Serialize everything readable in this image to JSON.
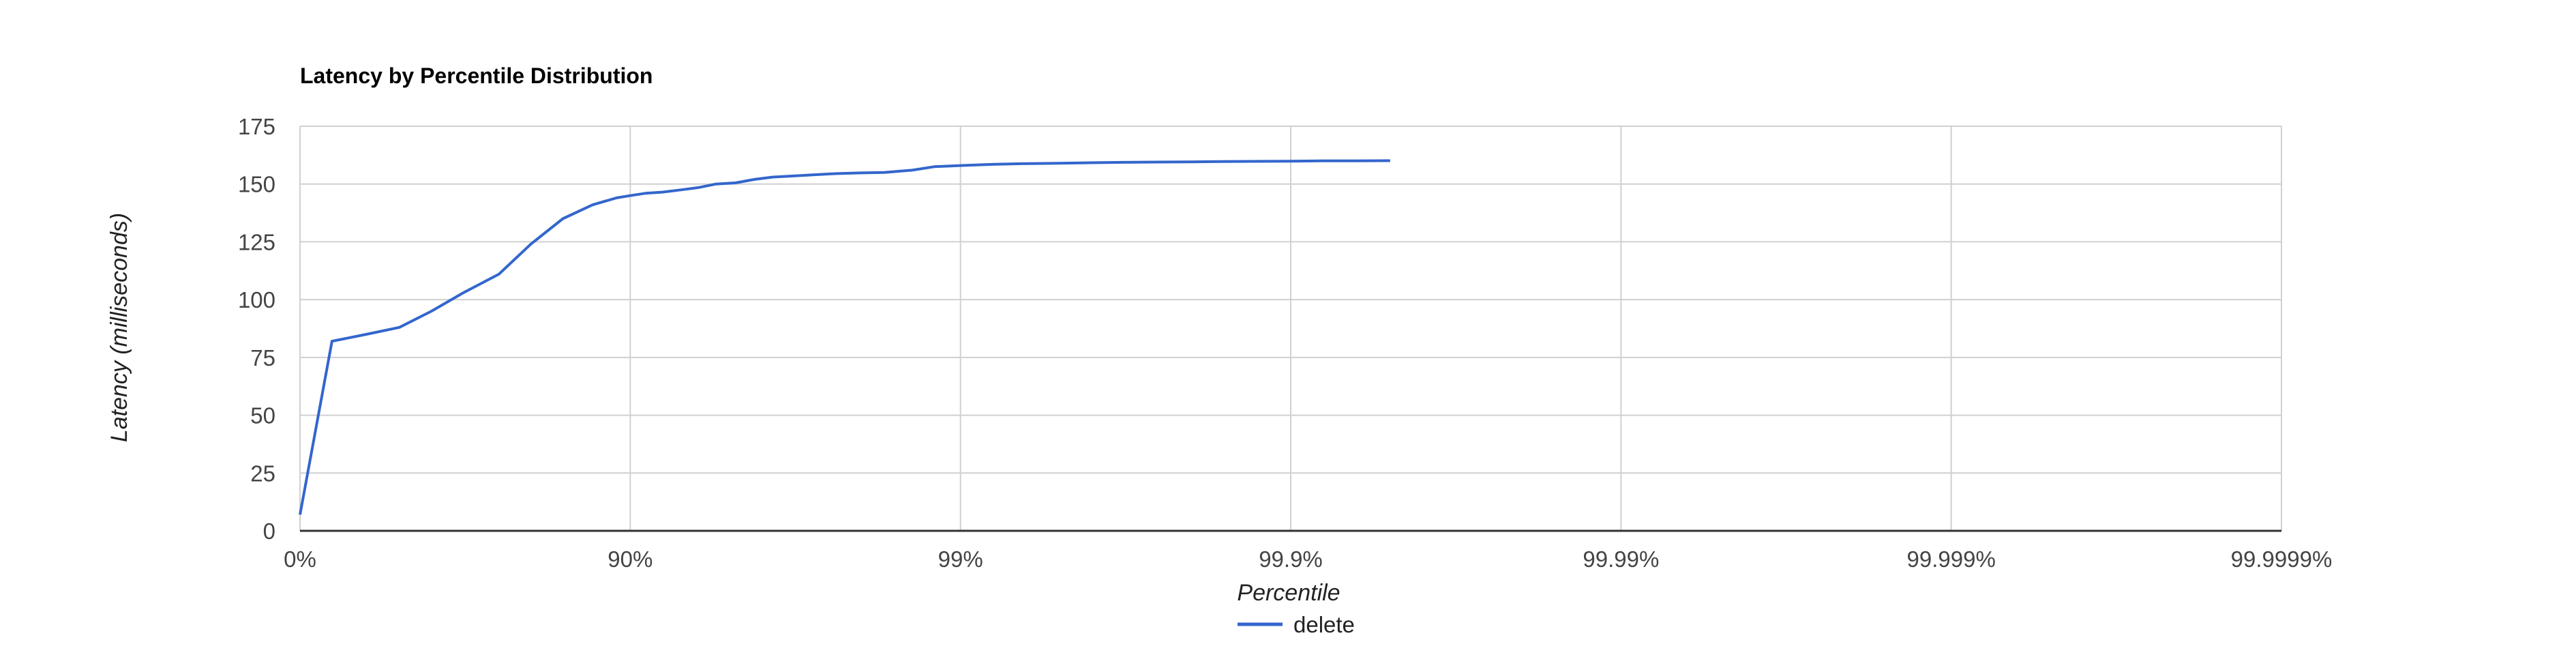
{
  "chart_data": {
    "type": "line",
    "title": "Latency by Percentile Distribution",
    "xlabel": "Percentile",
    "ylabel": "Latency (milliseconds)",
    "x_scale": "log-percentile",
    "x_ticks": [
      "0%",
      "90%",
      "99%",
      "99.9%",
      "99.99%",
      "99.999%",
      "99.9999%"
    ],
    "y_ticks": [
      "0",
      "25",
      "50",
      "75",
      "100",
      "125",
      "150",
      "175"
    ],
    "ylim": [
      0,
      175
    ],
    "grid": true,
    "legend_position": "bottom",
    "colors": {
      "delete": "#3366cc"
    },
    "series": [
      {
        "name": "delete",
        "x": [
          0,
          20,
          37,
          50,
          60,
          68,
          75,
          80,
          84,
          87,
          89,
          90,
          91,
          92,
          93,
          93.8,
          94.5,
          95.2,
          95.8,
          96.3,
          96.8,
          97.2,
          97.6,
          98.0,
          98.3,
          98.6,
          98.8,
          99.0,
          99.2,
          99.35,
          99.5,
          99.6,
          99.68,
          99.75,
          99.8,
          99.84,
          99.87,
          99.9,
          99.92,
          99.937,
          99.95
        ],
        "values": [
          7,
          82,
          85,
          88,
          95,
          103,
          111,
          124,
          135,
          141,
          144,
          145,
          146,
          146.5,
          147.5,
          148.5,
          150,
          150.5,
          152,
          153,
          153.5,
          154,
          154.5,
          154.8,
          155,
          156,
          157.5,
          158,
          158.5,
          158.8,
          159,
          159.2,
          159.4,
          159.5,
          159.6,
          159.7,
          159.8,
          159.9,
          160.0,
          160.0,
          160.1
        ]
      }
    ]
  }
}
